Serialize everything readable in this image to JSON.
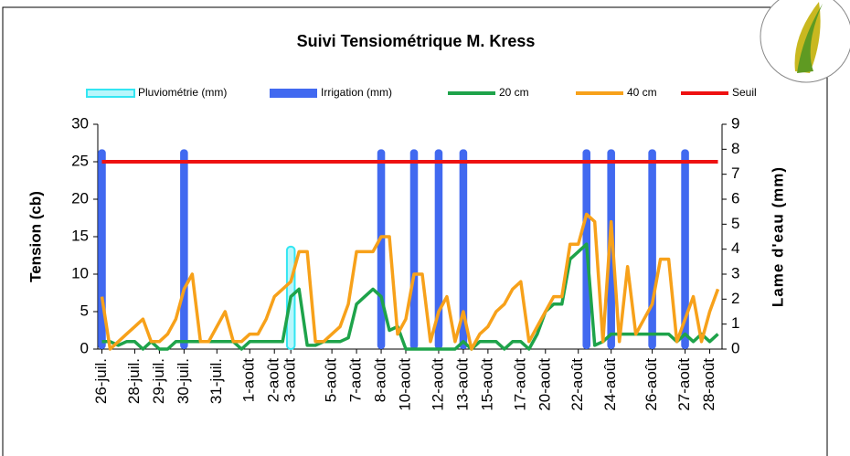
{
  "chart_data": {
    "type": "combo",
    "title": "Suivi Tensiométrique M. Kress",
    "ylabel": "Tension (cb)",
    "y2label": "Lame d'eau (mm)",
    "categories": [
      "26-juil.",
      null,
      null,
      null,
      "28-juil.",
      null,
      null,
      "29-juil.",
      null,
      null,
      "30-juil.",
      null,
      null,
      null,
      "31-juil.",
      null,
      null,
      null,
      "1-août",
      null,
      null,
      "2-août",
      null,
      "3-août",
      null,
      null,
      null,
      null,
      "5-août",
      null,
      null,
      "7-août",
      null,
      null,
      "8-août",
      null,
      null,
      "10-août",
      null,
      null,
      null,
      "12-août",
      null,
      null,
      "13-août",
      null,
      null,
      "15-août",
      null,
      null,
      null,
      "17-août",
      null,
      null,
      "20-août",
      null,
      null,
      null,
      "22-août",
      null,
      null,
      null,
      "24-août",
      null,
      null,
      null,
      null,
      "26-août",
      null,
      null,
      null,
      "27-août",
      null,
      null,
      "28-août",
      null
    ],
    "ylim": [
      0,
      30
    ],
    "yticks": [
      0,
      5,
      10,
      15,
      20,
      25,
      30
    ],
    "y2lim": [
      0,
      9
    ],
    "y2ticks": [
      0,
      1,
      2,
      3,
      4,
      5,
      6,
      7,
      8,
      9
    ],
    "series": [
      {
        "name": "Pluviométrie (mm)",
        "kind": "bar",
        "axis": "y2",
        "color": "#33e6f2",
        "values": [
          null,
          null,
          null,
          null,
          null,
          null,
          null,
          null,
          null,
          null,
          null,
          null,
          null,
          null,
          null,
          null,
          null,
          null,
          null,
          null,
          null,
          null,
          null,
          4.1,
          null,
          null,
          null,
          null,
          null,
          null,
          null,
          null,
          null,
          null,
          null,
          null,
          null,
          null,
          null,
          null,
          null,
          null,
          null,
          null,
          null,
          null,
          null,
          null,
          null,
          null,
          null,
          null,
          null,
          null,
          null,
          null,
          null,
          null,
          null,
          null,
          null,
          null,
          null,
          null,
          null,
          null,
          null,
          null,
          null,
          null,
          null,
          null,
          null,
          null,
          null,
          null
        ]
      },
      {
        "name": "Irrigation (mm)",
        "kind": "bar",
        "axis": "y2",
        "color": "#4169f0",
        "values": [
          8,
          null,
          null,
          null,
          null,
          null,
          null,
          null,
          null,
          null,
          8,
          null,
          null,
          null,
          null,
          null,
          null,
          null,
          null,
          null,
          null,
          null,
          null,
          null,
          null,
          null,
          null,
          null,
          null,
          null,
          null,
          null,
          null,
          null,
          8,
          null,
          null,
          null,
          8,
          null,
          null,
          8,
          null,
          null,
          8,
          null,
          null,
          null,
          null,
          null,
          null,
          null,
          null,
          null,
          null,
          null,
          null,
          null,
          null,
          8,
          null,
          null,
          8,
          null,
          null,
          null,
          null,
          8,
          null,
          null,
          null,
          8,
          null,
          null,
          null,
          null
        ]
      },
      {
        "name": "20 cm",
        "kind": "line",
        "color": "#1ea34a",
        "values": [
          1,
          1,
          0.5,
          1,
          1,
          0,
          1,
          0,
          0,
          1,
          1,
          1,
          1,
          1,
          1,
          1,
          1,
          0,
          1,
          1,
          1,
          1,
          1,
          7,
          8,
          0.5,
          0.5,
          1,
          1,
          1,
          1.5,
          6,
          7,
          8,
          7,
          2.5,
          3,
          0,
          0,
          0,
          0,
          0,
          0,
          0,
          1,
          0,
          1,
          1,
          1,
          0,
          1,
          1,
          0,
          2,
          5,
          6,
          6,
          12,
          13,
          14,
          0.5,
          1,
          2,
          2,
          2,
          2,
          2,
          2,
          2,
          2,
          1,
          2,
          1,
          2,
          1,
          2
        ]
      },
      {
        "name": "40 cm",
        "kind": "line",
        "color": "#f7a11a",
        "values": [
          7,
          0,
          1,
          2,
          3,
          4,
          1,
          1,
          2,
          4,
          8,
          10,
          1,
          1,
          3,
          5,
          1,
          1,
          2,
          2,
          4,
          7,
          8,
          9,
          13,
          13,
          1,
          1,
          2,
          3,
          6,
          13,
          13,
          13,
          15,
          15,
          2,
          4,
          10,
          10,
          1,
          5,
          7,
          1,
          5,
          0,
          2,
          3,
          5,
          6,
          8,
          9,
          1,
          3,
          5,
          7,
          7,
          14,
          14,
          18,
          17,
          1,
          17,
          1,
          11,
          2,
          4,
          6,
          12,
          12,
          1,
          4,
          7,
          1,
          5,
          8
        ]
      },
      {
        "name": "Seuil",
        "kind": "line",
        "color": "#ee1111",
        "values": [
          25,
          25,
          25,
          25,
          25,
          25,
          25,
          25,
          25,
          25,
          25,
          25,
          25,
          25,
          25,
          25,
          25,
          25,
          25,
          25,
          25,
          25,
          25,
          25,
          25,
          25,
          25,
          25,
          25,
          25,
          25,
          25,
          25,
          25,
          25,
          25,
          25,
          25,
          25,
          25,
          25,
          25,
          25,
          25,
          25,
          25,
          25,
          25,
          25,
          25,
          25,
          25,
          25,
          25,
          25,
          25,
          25,
          25,
          25,
          25,
          25,
          25,
          25,
          25,
          25,
          25,
          25,
          25,
          25,
          25,
          25,
          25,
          25,
          25,
          25,
          25
        ]
      }
    ]
  }
}
